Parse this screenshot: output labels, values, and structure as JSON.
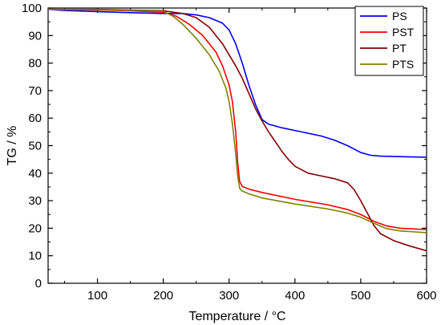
{
  "chart_data": {
    "type": "line",
    "title": "",
    "xlabel": "Temperature / °C",
    "ylabel": "TG / %",
    "xlim": [
      25,
      600
    ],
    "ylim": [
      0,
      100
    ],
    "xticks": [
      100,
      200,
      300,
      400,
      500,
      600
    ],
    "yticks": [
      0,
      10,
      20,
      30,
      40,
      50,
      60,
      70,
      80,
      90,
      100
    ],
    "grid": false,
    "legend_position": "top-right",
    "series": [
      {
        "name": "PS",
        "color": "#0000ff",
        "points": [
          [
            25,
            99.5
          ],
          [
            50,
            99.1
          ],
          [
            100,
            98.7
          ],
          [
            150,
            98.3
          ],
          [
            200,
            98.0
          ],
          [
            230,
            98.0
          ],
          [
            250,
            97.5
          ],
          [
            270,
            96.5
          ],
          [
            290,
            94.5
          ],
          [
            300,
            92.0
          ],
          [
            310,
            87.0
          ],
          [
            320,
            80.0
          ],
          [
            330,
            72.0
          ],
          [
            340,
            65.0
          ],
          [
            350,
            59.5
          ],
          [
            360,
            57.8
          ],
          [
            380,
            56.5
          ],
          [
            400,
            55.5
          ],
          [
            420,
            54.5
          ],
          [
            440,
            53.5
          ],
          [
            460,
            52.0
          ],
          [
            480,
            50.0
          ],
          [
            500,
            47.5
          ],
          [
            515,
            46.5
          ],
          [
            530,
            46.2
          ],
          [
            560,
            46.0
          ],
          [
            600,
            45.8
          ]
        ]
      },
      {
        "name": "PST",
        "color": "#ff0000",
        "points": [
          [
            25,
            99.5
          ],
          [
            100,
            99.3
          ],
          [
            150,
            99.0
          ],
          [
            200,
            98.5
          ],
          [
            220,
            97.0
          ],
          [
            240,
            94.0
          ],
          [
            260,
            90.0
          ],
          [
            280,
            84.0
          ],
          [
            290,
            79.0
          ],
          [
            300,
            72.0
          ],
          [
            305,
            66.0
          ],
          [
            310,
            55.0
          ],
          [
            313,
            44.0
          ],
          [
            316,
            37.0
          ],
          [
            320,
            35.2
          ],
          [
            330,
            34.2
          ],
          [
            350,
            33.0
          ],
          [
            400,
            30.5
          ],
          [
            450,
            28.5
          ],
          [
            480,
            26.8
          ],
          [
            500,
            25.0
          ],
          [
            520,
            22.5
          ],
          [
            540,
            20.8
          ],
          [
            560,
            20.0
          ],
          [
            600,
            19.5
          ]
        ]
      },
      {
        "name": "PT",
        "color": "#800000",
        "points": [
          [
            25,
            99.5
          ],
          [
            100,
            99.5
          ],
          [
            200,
            99.0
          ],
          [
            230,
            98.0
          ],
          [
            250,
            96.5
          ],
          [
            270,
            93.0
          ],
          [
            290,
            87.0
          ],
          [
            310,
            79.0
          ],
          [
            320,
            74.5
          ],
          [
            330,
            69.0
          ],
          [
            340,
            63.5
          ],
          [
            350,
            59.0
          ],
          [
            360,
            55.0
          ],
          [
            370,
            51.5
          ],
          [
            380,
            48.0
          ],
          [
            390,
            45.0
          ],
          [
            400,
            42.5
          ],
          [
            420,
            40.0
          ],
          [
            440,
            39.0
          ],
          [
            460,
            38.0
          ],
          [
            480,
            36.5
          ],
          [
            490,
            34.0
          ],
          [
            500,
            30.0
          ],
          [
            510,
            25.5
          ],
          [
            520,
            21.0
          ],
          [
            530,
            18.0
          ],
          [
            550,
            15.5
          ],
          [
            575,
            13.5
          ],
          [
            600,
            11.8
          ]
        ]
      },
      {
        "name": "PTS",
        "color": "#808000",
        "points": [
          [
            25,
            99.5
          ],
          [
            100,
            99.4
          ],
          [
            150,
            99.2
          ],
          [
            200,
            98.8
          ],
          [
            215,
            97.0
          ],
          [
            230,
            94.0
          ],
          [
            250,
            89.0
          ],
          [
            270,
            83.0
          ],
          [
            285,
            77.0
          ],
          [
            295,
            71.0
          ],
          [
            300,
            66.0
          ],
          [
            305,
            58.0
          ],
          [
            310,
            47.0
          ],
          [
            313,
            39.0
          ],
          [
            316,
            34.5
          ],
          [
            320,
            33.5
          ],
          [
            330,
            32.5
          ],
          [
            350,
            31.0
          ],
          [
            400,
            28.8
          ],
          [
            450,
            27.0
          ],
          [
            480,
            25.5
          ],
          [
            500,
            24.0
          ],
          [
            520,
            21.8
          ],
          [
            540,
            19.8
          ],
          [
            560,
            19.0
          ],
          [
            600,
            18.4
          ]
        ]
      }
    ]
  }
}
